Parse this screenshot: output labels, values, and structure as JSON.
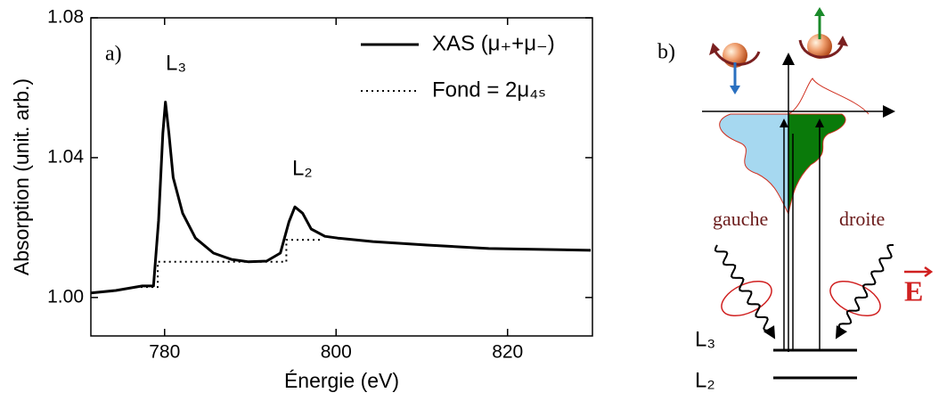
{
  "chart_data": {
    "type": "line",
    "xlabel": "Énergie (eV)",
    "ylabel": "Absorption (unit. arb.)",
    "xlim": [
      771.4,
      829.9
    ],
    "ylim": [
      0.989,
      1.08
    ],
    "xticks": [
      780,
      800,
      820
    ],
    "yticks": [
      {
        "value": 1,
        "label": "1.00"
      },
      1.04,
      1.08
    ],
    "legend": "upper right",
    "annotations": [
      "a)",
      "L₃",
      "L₂"
    ],
    "series": [
      {
        "name": "XAS (μ₊+μ₋)",
        "color": "#000000",
        "style": "solid",
        "x": [
          771.4,
          774.3,
          777.4,
          778.7,
          779.3,
          779.8,
          780.1,
          780.5,
          781.0,
          782.1,
          783.6,
          785.7,
          787.8,
          789.8,
          791.9,
          793.5,
          794.5,
          795.2,
          796.1,
          797.1,
          798.7,
          800.2,
          804.3,
          810.6,
          817.8,
          829.7
        ],
        "values": [
          1.0013,
          1.002,
          1.0033,
          1.0033,
          1.022,
          1.047,
          1.0559,
          1.047,
          1.0343,
          1.0241,
          1.017,
          1.0127,
          1.0109,
          1.0102,
          1.0104,
          1.0127,
          1.0216,
          1.0259,
          1.0241,
          1.0196,
          1.0175,
          1.017,
          1.016,
          1.015,
          1.014,
          1.0135
        ]
      },
      {
        "name": "Fond = 2μ₄ₛ",
        "color": "#000000",
        "style": "dotted",
        "x": [
          776.6,
          779.2,
          779.2,
          794.2,
          794.2,
          798.5
        ],
        "values": [
          1.003,
          1.003,
          1.0102,
          1.0102,
          1.0165,
          1.0165
        ]
      }
    ]
  },
  "diagram": {
    "label": "b)",
    "left_light": "gauche",
    "right_light": "droite",
    "field": "E",
    "levels": [
      "L₃",
      "L₂"
    ]
  }
}
